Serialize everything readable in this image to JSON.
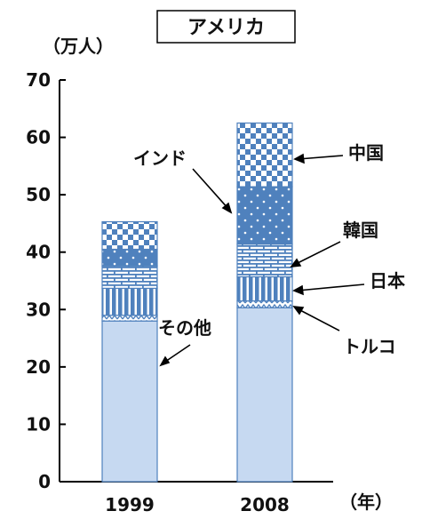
{
  "chart_data": {
    "type": "bar",
    "stacked": true,
    "title": "アメリカ",
    "ylabel": "（万人）",
    "xlabel": "（年）",
    "categories": [
      "1999",
      "2008"
    ],
    "ylim": [
      0,
      70
    ],
    "yticks": [
      0,
      10,
      20,
      30,
      40,
      50,
      60,
      70
    ],
    "grid": false,
    "legend": "annotations-with-arrows",
    "series": [
      {
        "name": "その他",
        "values": [
          28.0,
          30.3
        ],
        "pattern": "plain",
        "color": "#c6d9f1"
      },
      {
        "name": "トルコ",
        "values": [
          1.0,
          1.2
        ],
        "pattern": "zigzag",
        "color": "#4f81bd"
      },
      {
        "name": "日本",
        "values": [
          4.7,
          4.2
        ],
        "pattern": "vertical-bars",
        "color": "#4f81bd"
      },
      {
        "name": "韓国",
        "values": [
          3.9,
          5.7
        ],
        "pattern": "brick",
        "color": "#4f81bd"
      },
      {
        "name": "インド",
        "values": [
          2.9,
          10.0
        ],
        "pattern": "dots",
        "color": "#4f81bd"
      },
      {
        "name": "中国",
        "values": [
          4.8,
          11.1
        ],
        "pattern": "checker",
        "color": "#4f81bd"
      }
    ]
  }
}
